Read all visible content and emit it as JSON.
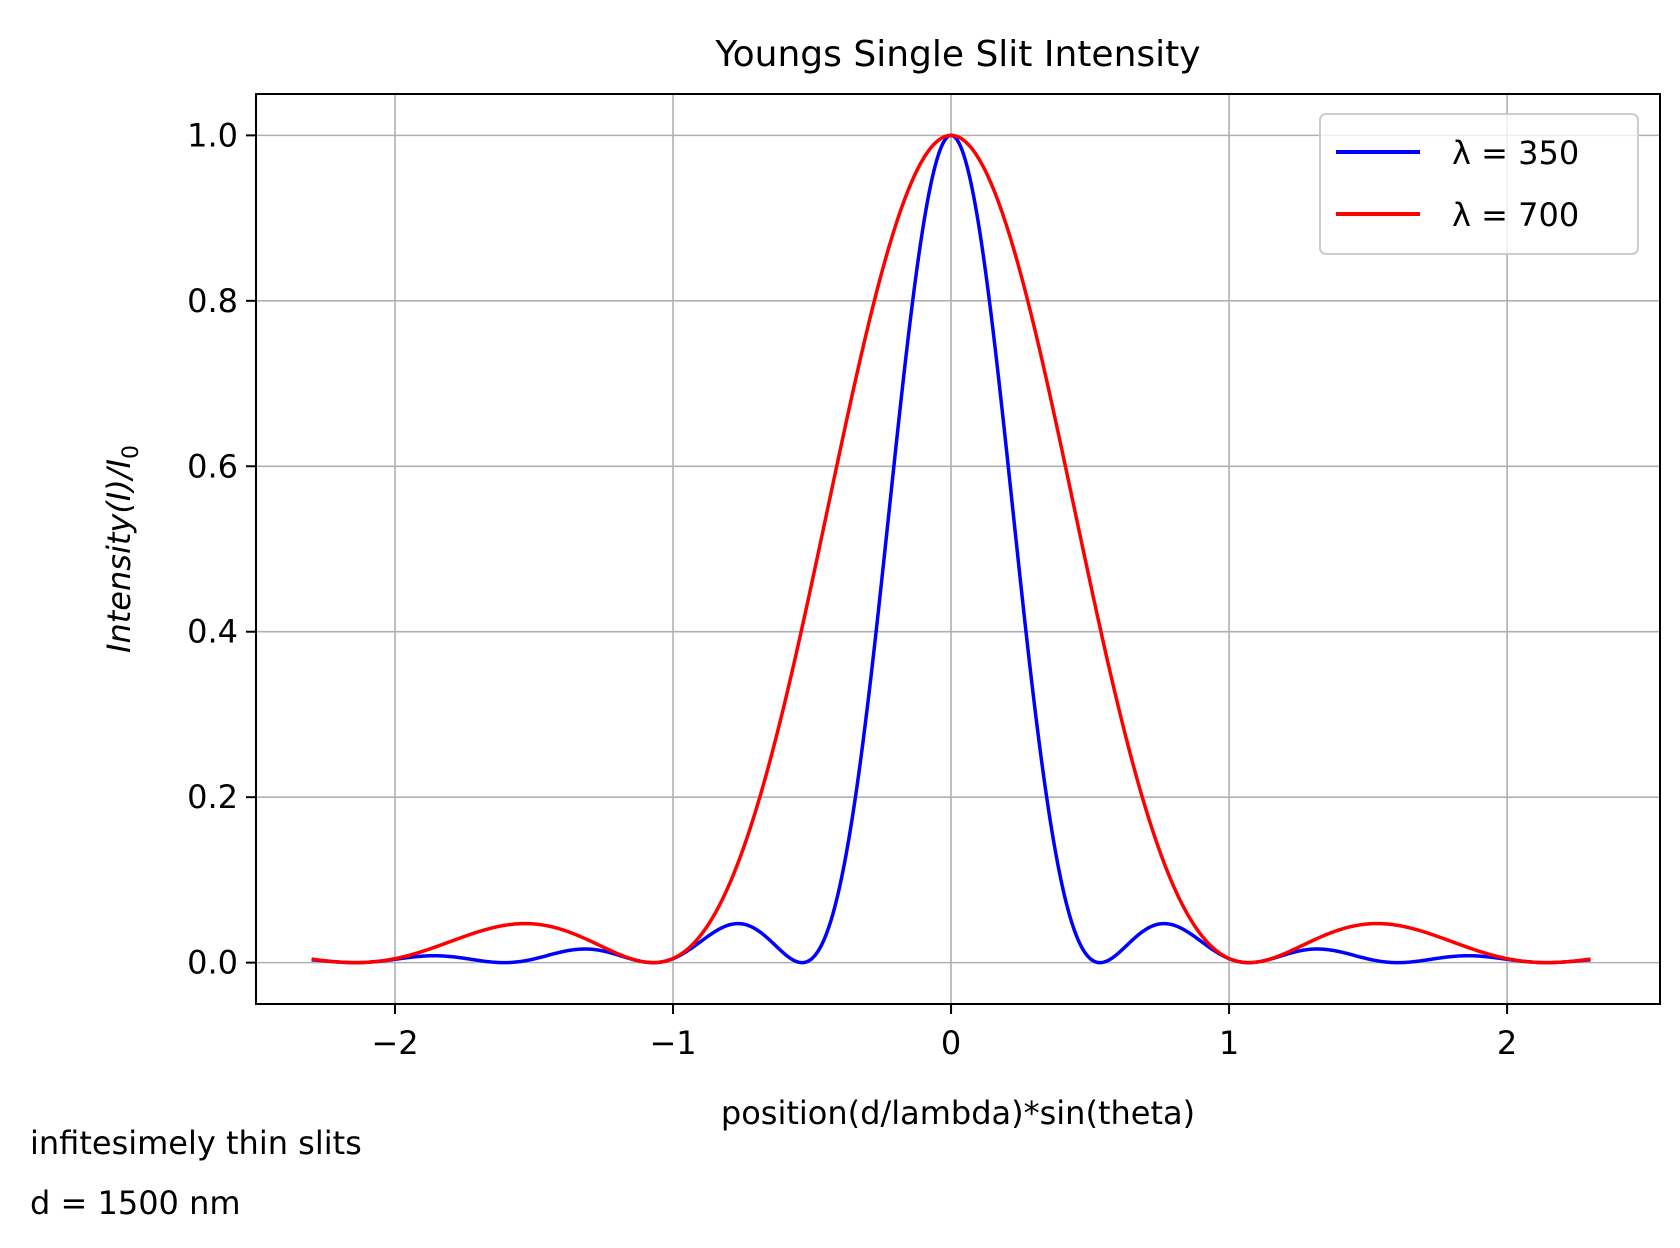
{
  "chart_data": {
    "type": "line",
    "title": "Youngs Single Slit Intensity",
    "xlabel": "position(d/lambda)*sin(theta)",
    "ylabel": "Intensity(I)/I0",
    "ylabel_parts": {
      "main": "Intensity(I)/I",
      "sub": "0"
    },
    "xlim": [
      -2.5,
      2.55
    ],
    "ylim": [
      -0.05,
      1.05
    ],
    "x_range": [
      -2.3,
      2.3
    ],
    "xticks": [
      -2,
      -1,
      0,
      1,
      2
    ],
    "xtick_labels": [
      "−2",
      "−1",
      "0",
      "1",
      "2"
    ],
    "yticks": [
      0.0,
      0.2,
      0.4,
      0.6,
      0.8,
      1.0
    ],
    "ytick_labels": [
      "0.0",
      "0.2",
      "0.4",
      "0.6",
      "0.8",
      "1.0"
    ],
    "grid": true,
    "legend_position": "top-right",
    "series": [
      {
        "name": "λ = 350",
        "color": "#0000ff",
        "first_zero_x": 0.5357
      },
      {
        "name": "λ = 700",
        "color": "#ff0000",
        "first_zero_x": 1.0714
      }
    ],
    "annotation": [
      "infitesimely thin slits",
      "d = 1500 nm"
    ]
  }
}
